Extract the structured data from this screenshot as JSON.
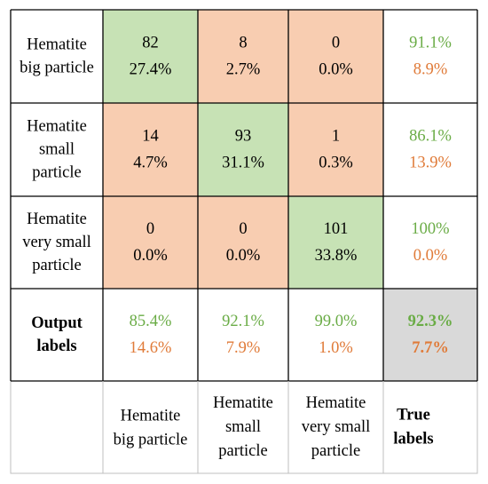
{
  "chart_data": {
    "type": "heatmap",
    "rows": [
      {
        "label": "Hematite big particle",
        "label_lines": [
          "Hematite",
          "big particle"
        ]
      },
      {
        "label": "Hematite small particle",
        "label_lines": [
          "Hematite",
          "small",
          "particle"
        ]
      },
      {
        "label": "Hematite very small particle",
        "label_lines": [
          "Hematite",
          "very small",
          "particle"
        ]
      }
    ],
    "row_summary_label": {
      "text": "Output labels",
      "lines": [
        "Output",
        "labels"
      ]
    },
    "columns": [
      {
        "label": "Hematite big particle",
        "label_lines": [
          "Hematite",
          "big particle"
        ]
      },
      {
        "label": "Hematite small particle",
        "label_lines": [
          "Hematite",
          "small",
          "particle"
        ]
      },
      {
        "label": "Hematite very small particle",
        "label_lines": [
          "Hematite",
          "very small",
          "particle"
        ]
      }
    ],
    "col_summary_label": {
      "text": "True labels",
      "lines": [
        "True",
        "labels"
      ]
    },
    "counts": [
      [
        82,
        8,
        0
      ],
      [
        14,
        93,
        1
      ],
      [
        0,
        0,
        101
      ]
    ],
    "percents": [
      [
        "27.4%",
        "2.7%",
        "0.0%"
      ],
      [
        "4.7%",
        "31.1%",
        "0.3%"
      ],
      [
        "0.0%",
        "0.0%",
        "33.8%"
      ]
    ],
    "row_summary": [
      [
        "91.1%",
        "8.9%"
      ],
      [
        "86.1%",
        "13.9%"
      ],
      [
        "100%",
        "0.0%"
      ]
    ],
    "col_summary": [
      [
        "85.4%",
        "14.6%"
      ],
      [
        "92.1%",
        "7.9%"
      ],
      [
        "99.0%",
        "1.0%"
      ]
    ],
    "overall": [
      "92.3%",
      "7.7%"
    ],
    "colors": {
      "correct_fill": "#c7e2b5",
      "error_fill": "#f8cdb1",
      "overall_fill": "#d9d9d9",
      "correct_text": "#6aac46",
      "error_text": "#e07b39",
      "border": "#000000",
      "outer_border": "#bfbfbf"
    }
  }
}
